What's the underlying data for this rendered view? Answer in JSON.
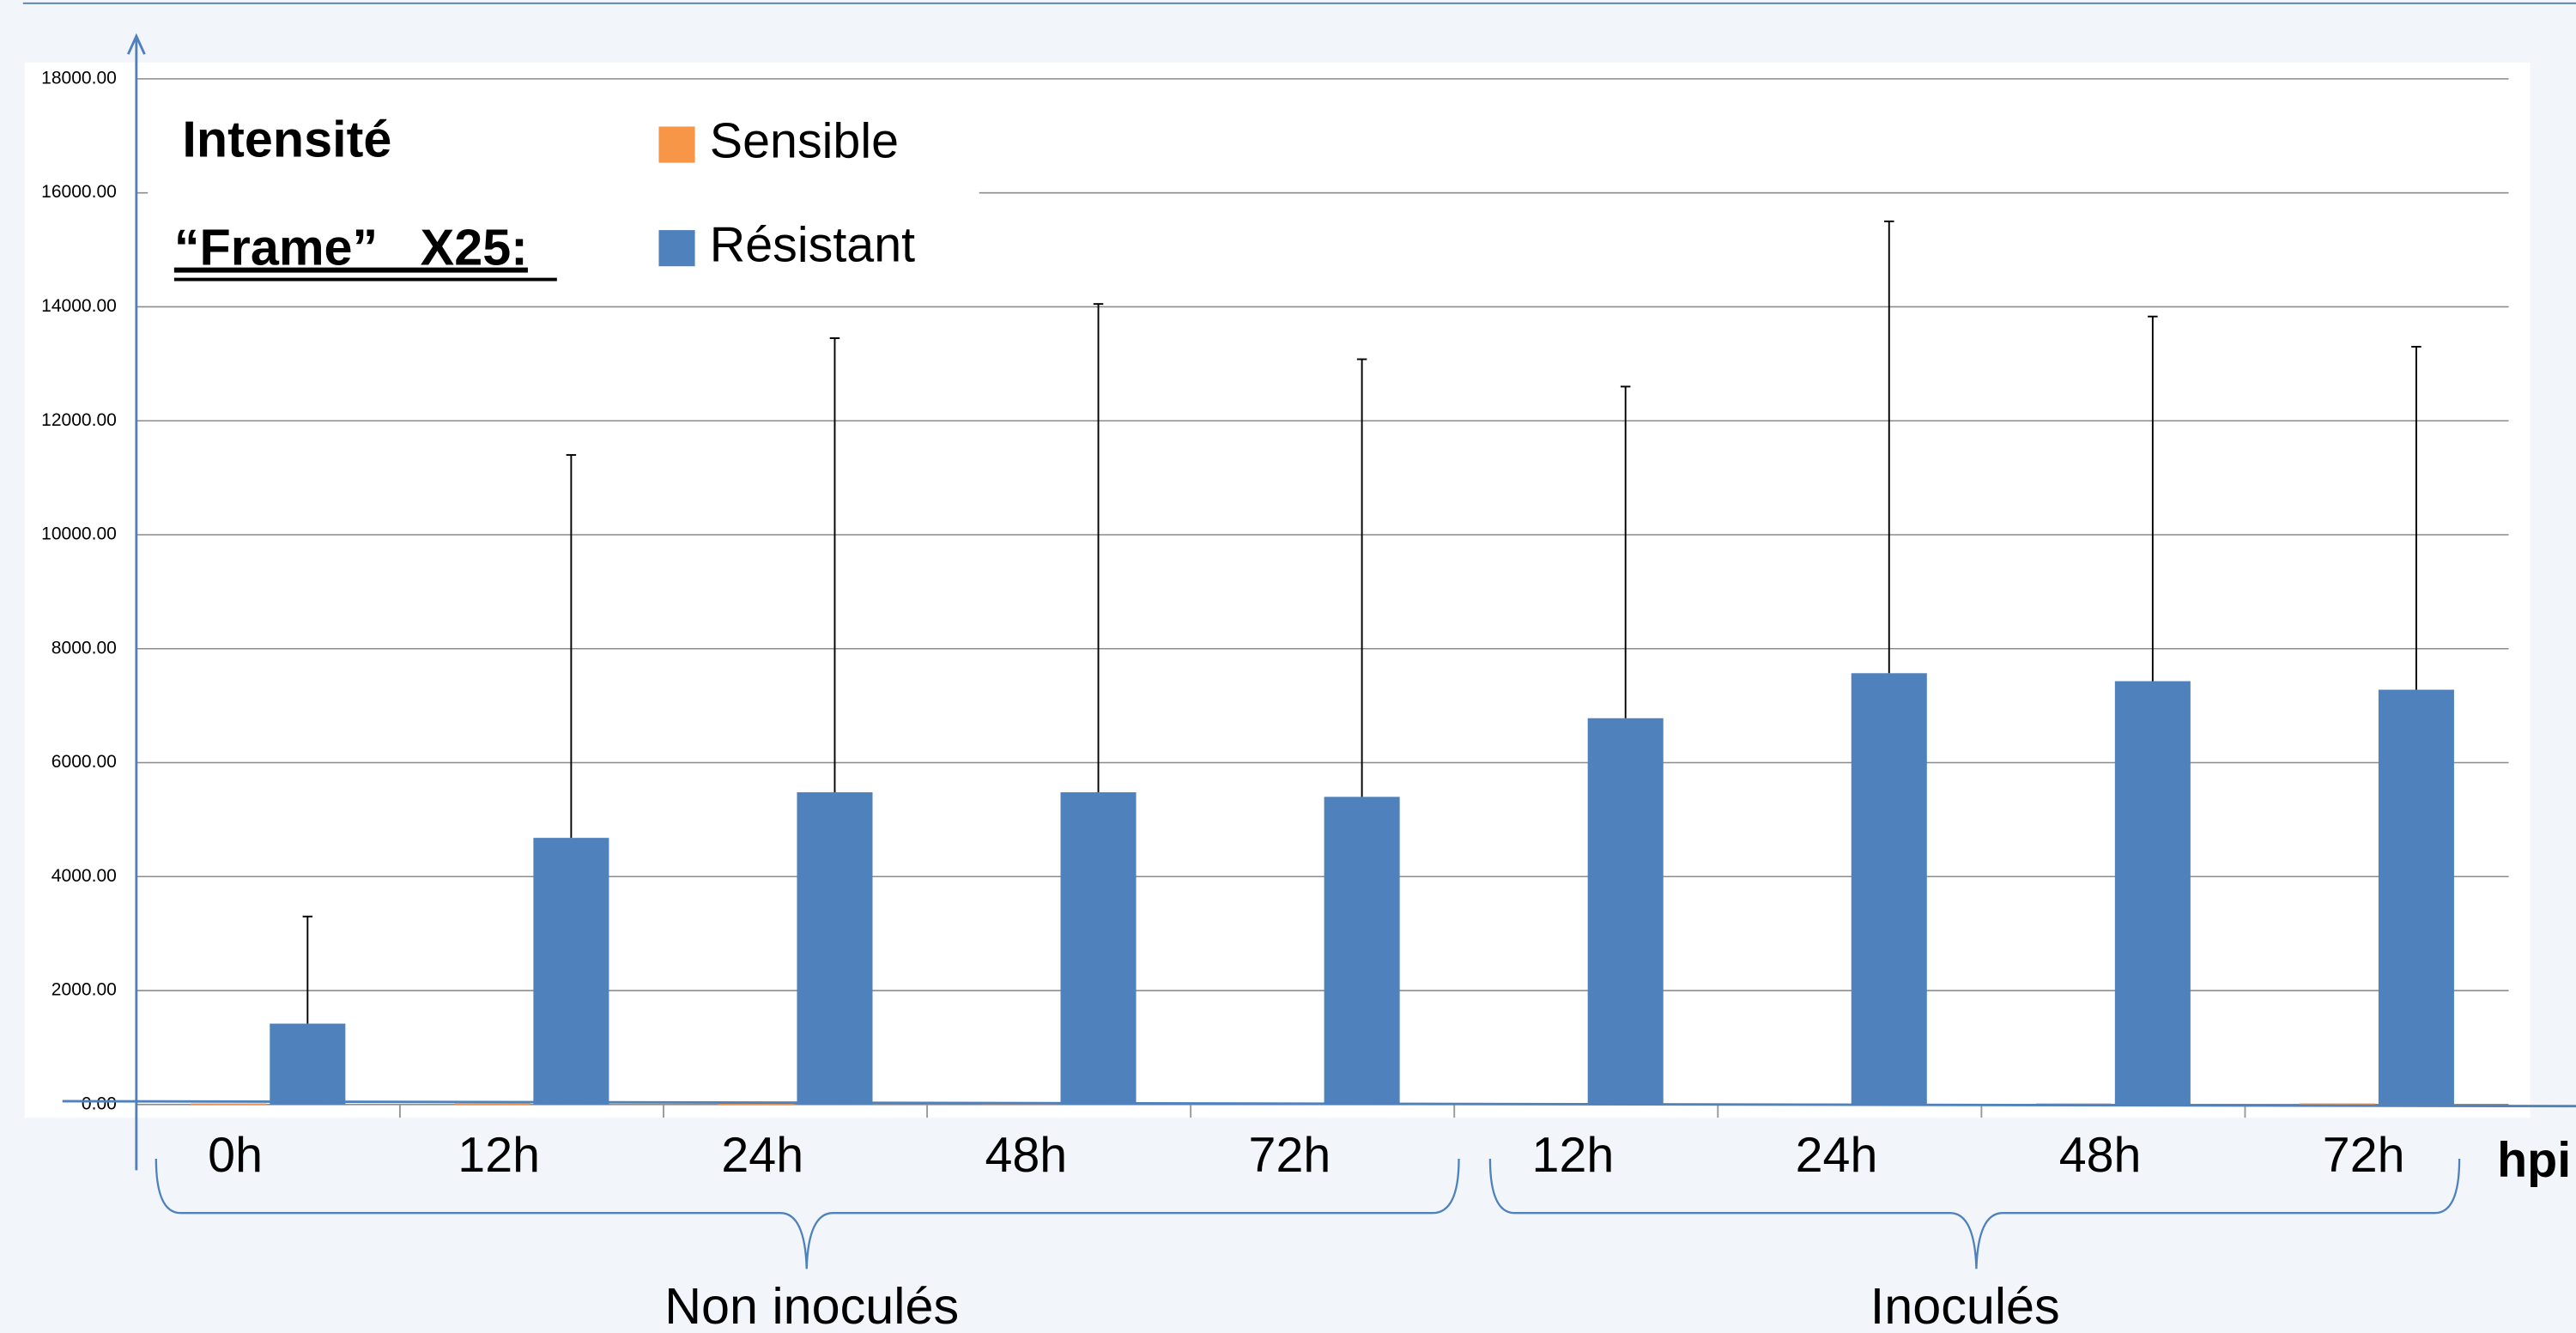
{
  "chart_data": {
    "type": "bar",
    "title": "Intensité",
    "subtitle": "“Frame”   X25:",
    "x_label": "hpi",
    "groups": [
      {
        "name": "Non inoculés",
        "categories": [
          "0h",
          "12h",
          "24h",
          "48h",
          "72h"
        ]
      },
      {
        "name": "Inoculés",
        "categories": [
          "12h",
          "24h",
          "48h",
          "72h"
        ]
      }
    ],
    "series": [
      {
        "name": "Sensible",
        "color": "#f79646",
        "values": [
          20,
          20,
          20,
          20,
          20,
          20,
          20,
          20,
          20
        ]
      },
      {
        "name": "Résistant",
        "color": "#4f81bd",
        "values": [
          1420,
          4680,
          5480,
          5480,
          5400,
          6780,
          7570,
          7430,
          7280
        ],
        "errors": [
          1880,
          6720,
          7970,
          8570,
          7680,
          5820,
          7930,
          6400,
          6020
        ]
      }
    ],
    "ylim": [
      0,
      18000
    ],
    "yticks": [
      {
        "value": 0,
        "label": "0.00"
      },
      {
        "value": 2000,
        "label": "2000.00"
      },
      {
        "value": 4000,
        "label": "4000.00"
      },
      {
        "value": 6000,
        "label": "6000.00"
      },
      {
        "value": 8000,
        "label": "8000.00"
      },
      {
        "value": 10000,
        "label": "10000.00"
      },
      {
        "value": 12000,
        "label": "12000.00"
      },
      {
        "value": 14000,
        "label": "14000.00"
      },
      {
        "value": 16000,
        "label": "16000.00"
      },
      {
        "value": 18000,
        "label": "18000.00"
      }
    ],
    "grid": true
  }
}
